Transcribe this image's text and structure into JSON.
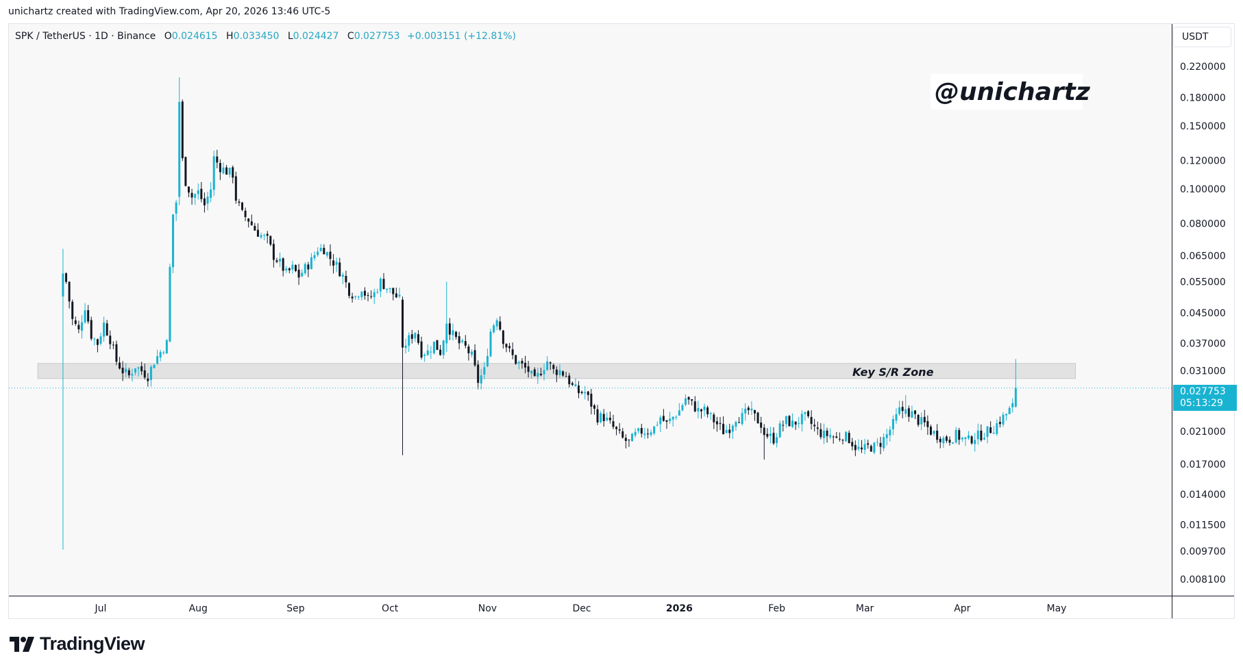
{
  "credit": "unichartz created with TradingView.com, Apr 20, 2026 13:46 UTC-5",
  "brand": "TradingView",
  "watermark": "@unichartz",
  "currency_unit": "USDT",
  "colors": {
    "up": "#19b3d2",
    "down": "#131722",
    "zone": "#e2e2e2",
    "price_line": "#19b3d2"
  },
  "legend": {
    "symbol": "SPK / TetherUS · 1D · Binance",
    "o_label": "O",
    "o_value": "0.024615",
    "h_label": "H",
    "h_value": "0.033450",
    "l_label": "L",
    "l_value": "0.024427",
    "c_label": "C",
    "c_value": "0.027753",
    "change": "+0.003151 (+12.81%)"
  },
  "last_price": {
    "price": "0.027753",
    "countdown": "05:13:29"
  },
  "chart_data": {
    "type": "candlestick",
    "title": "SPK / TetherUS · 1D · Binance",
    "y_scale": "log",
    "ylim": [
      0.0073,
      0.26
    ],
    "yticks": [
      "0.220000",
      "0.180000",
      "0.150000",
      "0.120000",
      "0.100000",
      "0.080000",
      "0.065000",
      "0.055000",
      "0.045000",
      "0.037000",
      "0.031000",
      "0.021000",
      "0.017000",
      "0.014000",
      "0.011500",
      "0.009700",
      "0.008100"
    ],
    "xlabels": [
      {
        "label": "Jul",
        "day": 12
      },
      {
        "label": "Aug",
        "day": 43
      },
      {
        "label": "Sep",
        "day": 74
      },
      {
        "label": "Oct",
        "day": 104
      },
      {
        "label": "Nov",
        "day": 135
      },
      {
        "label": "Dec",
        "day": 165
      },
      {
        "label": "2026",
        "day": 196,
        "bold": true
      },
      {
        "label": "Feb",
        "day": 227
      },
      {
        "label": "Mar",
        "day": 255
      },
      {
        "label": "Apr",
        "day": 286
      },
      {
        "label": "May",
        "day": 316
      }
    ],
    "zone": {
      "label": "Key S/R Zone",
      "low": 0.0295,
      "high": 0.0325,
      "day_start": -8,
      "day_end": 322
    },
    "anchors": [
      [
        0,
        0.048
      ],
      [
        1,
        0.055
      ],
      [
        3,
        0.043
      ],
      [
        5,
        0.04
      ],
      [
        7,
        0.047
      ],
      [
        9,
        0.039
      ],
      [
        11,
        0.037
      ],
      [
        13,
        0.042
      ],
      [
        15,
        0.038
      ],
      [
        17,
        0.033
      ],
      [
        19,
        0.031
      ],
      [
        21,
        0.03
      ],
      [
        23,
        0.032
      ],
      [
        25,
        0.031
      ],
      [
        27,
        0.03
      ],
      [
        29,
        0.033
      ],
      [
        31,
        0.035
      ],
      [
        33,
        0.037
      ],
      [
        34,
        0.06
      ],
      [
        35,
        0.085
      ],
      [
        36,
        0.092
      ],
      [
        37,
        0.17
      ],
      [
        38,
        0.12
      ],
      [
        39,
        0.105
      ],
      [
        41,
        0.095
      ],
      [
        43,
        0.098
      ],
      [
        45,
        0.09
      ],
      [
        47,
        0.1
      ],
      [
        48,
        0.122
      ],
      [
        50,
        0.115
      ],
      [
        52,
        0.112
      ],
      [
        54,
        0.11
      ],
      [
        55,
        0.094
      ],
      [
        57,
        0.085
      ],
      [
        59,
        0.082
      ],
      [
        61,
        0.077
      ],
      [
        63,
        0.074
      ],
      [
        65,
        0.072
      ],
      [
        67,
        0.065
      ],
      [
        69,
        0.062
      ],
      [
        71,
        0.058
      ],
      [
        73,
        0.06
      ],
      [
        75,
        0.057
      ],
      [
        77,
        0.06
      ],
      [
        79,
        0.063
      ],
      [
        81,
        0.068
      ],
      [
        83,
        0.068
      ],
      [
        85,
        0.064
      ],
      [
        87,
        0.061
      ],
      [
        89,
        0.057
      ],
      [
        91,
        0.052
      ],
      [
        93,
        0.05
      ],
      [
        95,
        0.053
      ],
      [
        97,
        0.049
      ],
      [
        99,
        0.051
      ],
      [
        101,
        0.055
      ],
      [
        103,
        0.053
      ],
      [
        105,
        0.051
      ],
      [
        107,
        0.049
      ],
      [
        108,
        0.036
      ],
      [
        110,
        0.038
      ],
      [
        112,
        0.04
      ],
      [
        114,
        0.035
      ],
      [
        116,
        0.035
      ],
      [
        118,
        0.037
      ],
      [
        120,
        0.035
      ],
      [
        122,
        0.042
      ],
      [
        124,
        0.039
      ],
      [
        126,
        0.037
      ],
      [
        128,
        0.036
      ],
      [
        130,
        0.034
      ],
      [
        132,
        0.029
      ],
      [
        134,
        0.031
      ],
      [
        136,
        0.04
      ],
      [
        138,
        0.044
      ],
      [
        140,
        0.038
      ],
      [
        142,
        0.035
      ],
      [
        144,
        0.033
      ],
      [
        146,
        0.032
      ],
      [
        148,
        0.031
      ],
      [
        150,
        0.029
      ],
      [
        152,
        0.031
      ],
      [
        154,
        0.033
      ],
      [
        156,
        0.031
      ],
      [
        158,
        0.031
      ],
      [
        160,
        0.03
      ],
      [
        162,
        0.028
      ],
      [
        164,
        0.027
      ],
      [
        166,
        0.027
      ],
      [
        168,
        0.025
      ],
      [
        170,
        0.023
      ],
      [
        172,
        0.023
      ],
      [
        174,
        0.022
      ],
      [
        176,
        0.021
      ],
      [
        178,
        0.02
      ],
      [
        180,
        0.0195
      ],
      [
        182,
        0.0205
      ],
      [
        184,
        0.021
      ],
      [
        186,
        0.021
      ],
      [
        188,
        0.0215
      ],
      [
        190,
        0.023
      ],
      [
        192,
        0.022
      ],
      [
        194,
        0.023
      ],
      [
        196,
        0.024
      ],
      [
        198,
        0.026
      ],
      [
        200,
        0.025
      ],
      [
        202,
        0.024
      ],
      [
        204,
        0.024
      ],
      [
        206,
        0.023
      ],
      [
        208,
        0.022
      ],
      [
        210,
        0.021
      ],
      [
        212,
        0.0215
      ],
      [
        214,
        0.023
      ],
      [
        216,
        0.023
      ],
      [
        218,
        0.024
      ],
      [
        220,
        0.023
      ],
      [
        222,
        0.022
      ],
      [
        224,
        0.0205
      ],
      [
        226,
        0.02
      ],
      [
        228,
        0.0215
      ],
      [
        230,
        0.0225
      ],
      [
        232,
        0.022
      ],
      [
        234,
        0.0225
      ],
      [
        236,
        0.023
      ],
      [
        238,
        0.022
      ],
      [
        240,
        0.021
      ],
      [
        242,
        0.0205
      ],
      [
        244,
        0.0205
      ],
      [
        246,
        0.02
      ],
      [
        248,
        0.0205
      ],
      [
        250,
        0.02
      ],
      [
        252,
        0.019
      ],
      [
        254,
        0.0185
      ],
      [
        256,
        0.019
      ],
      [
        258,
        0.019
      ],
      [
        260,
        0.0195
      ],
      [
        262,
        0.0205
      ],
      [
        264,
        0.022
      ],
      [
        266,
        0.024
      ],
      [
        268,
        0.024
      ],
      [
        270,
        0.0235
      ],
      [
        272,
        0.0225
      ],
      [
        274,
        0.022
      ],
      [
        276,
        0.021
      ],
      [
        278,
        0.0205
      ],
      [
        280,
        0.02
      ],
      [
        282,
        0.02
      ],
      [
        284,
        0.0205
      ],
      [
        286,
        0.02
      ],
      [
        288,
        0.0198
      ],
      [
        290,
        0.0203
      ],
      [
        292,
        0.0205
      ],
      [
        294,
        0.021
      ],
      [
        296,
        0.0215
      ],
      [
        298,
        0.0225
      ],
      [
        300,
        0.0235
      ],
      [
        302,
        0.024615
      ]
    ],
    "special": [
      {
        "day": 0,
        "open": 0.05,
        "high": 0.068,
        "low": 0.0098,
        "close": 0.058
      },
      {
        "day": 37,
        "open": 0.095,
        "high": 0.205,
        "low": 0.09,
        "close": 0.175
      },
      {
        "day": 108,
        "open": 0.049,
        "high": 0.05,
        "low": 0.018,
        "close": 0.036
      },
      {
        "day": 122,
        "open": 0.037,
        "high": 0.055,
        "low": 0.035,
        "close": 0.042
      },
      {
        "day": 223,
        "open": 0.0215,
        "high": 0.022,
        "low": 0.0175,
        "close": 0.0205
      },
      {
        "day": 268,
        "open": 0.0235,
        "high": 0.0265,
        "low": 0.023,
        "close": 0.0242
      },
      {
        "day": 303,
        "open": 0.024615,
        "high": 0.03345,
        "low": 0.024427,
        "close": 0.027753
      }
    ],
    "current_price": 0.027753
  }
}
